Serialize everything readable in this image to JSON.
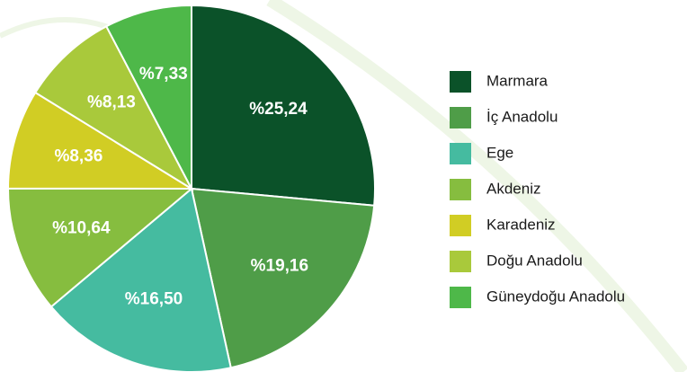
{
  "chart_data": {
    "type": "pie",
    "categories": [
      "Marmara",
      "İç Anadolu",
      "Ege",
      "Akdeniz",
      "Karadeniz",
      "Doğu Anadolu",
      "Güneydoğu Anadolu"
    ],
    "values": [
      25.24,
      19.16,
      16.5,
      10.64,
      8.36,
      8.13,
      7.33
    ],
    "value_labels": [
      "%25,24",
      "%19,16",
      "%16,50",
      "%10,64",
      "%8,36",
      "%8,13",
      "%7,33"
    ],
    "colors": [
      "#0b5229",
      "#4f9d48",
      "#45bba0",
      "#86bd3f",
      "#d1cd24",
      "#a9c93b",
      "#4eb849"
    ],
    "legend": "right"
  }
}
